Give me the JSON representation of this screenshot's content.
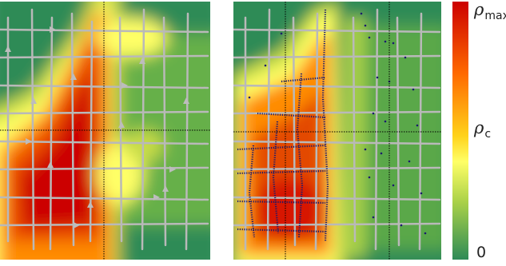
{
  "colors": {
    "low": "#2e8b57",
    "mid_low": "#8cc63f",
    "critical": "#ffff66",
    "mid_high": "#ff8c00",
    "high": "#cc0000",
    "vector": "#b9b9b9",
    "trajectory": "#1a1a6e",
    "guide": "#000000"
  },
  "colorbar": {
    "max_symbol": "ρ",
    "max_subscript": "max",
    "crit_symbol": "ρ",
    "crit_subscript": "c",
    "min_label": "0"
  },
  "icons": {
    "vector_arrow": "arrow-icon",
    "trajectory_marker": "dot-icon"
  }
}
